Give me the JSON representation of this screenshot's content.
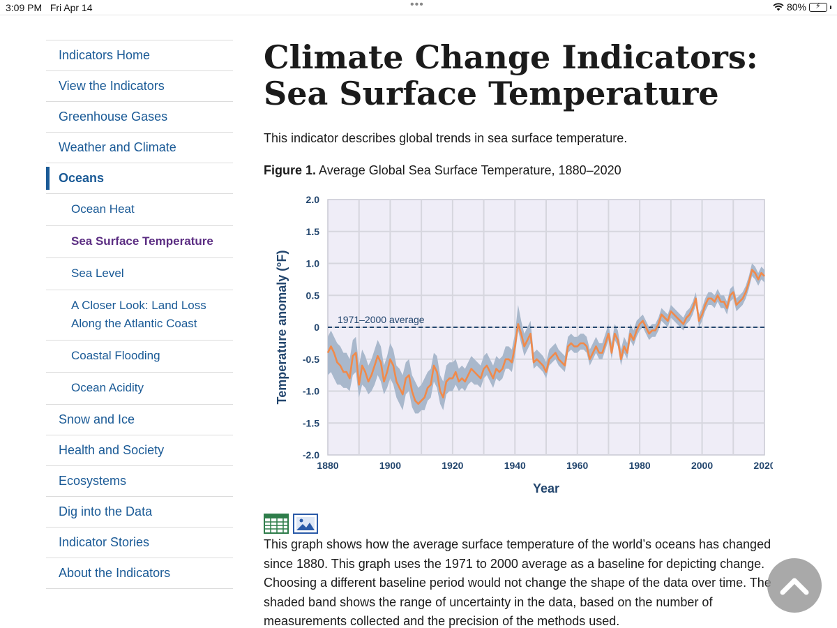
{
  "status": {
    "time": "3:09 PM",
    "date": "Fri Apr 14",
    "battery": "80%",
    "battery_level": 0.8
  },
  "sidebar": {
    "items": [
      {
        "label": "Indicators Home",
        "sub": false,
        "state": ""
      },
      {
        "label": "View the Indicators",
        "sub": false,
        "state": ""
      },
      {
        "label": "Greenhouse Gases",
        "sub": false,
        "state": ""
      },
      {
        "label": "Weather and Climate",
        "sub": false,
        "state": ""
      },
      {
        "label": "Oceans",
        "sub": false,
        "state": "active"
      },
      {
        "label": "Ocean Heat",
        "sub": true,
        "state": ""
      },
      {
        "label": "Sea Surface Temperature",
        "sub": true,
        "state": "current"
      },
      {
        "label": "Sea Level",
        "sub": true,
        "state": ""
      },
      {
        "label": "A Closer Look: Land Loss Along the Atlantic Coast",
        "sub": true,
        "state": ""
      },
      {
        "label": "Coastal Flooding",
        "sub": true,
        "state": ""
      },
      {
        "label": "Ocean Acidity",
        "sub": true,
        "state": ""
      },
      {
        "label": "Snow and Ice",
        "sub": false,
        "state": ""
      },
      {
        "label": "Health and Society",
        "sub": false,
        "state": ""
      },
      {
        "label": "Ecosystems",
        "sub": false,
        "state": ""
      },
      {
        "label": "Dig into the Data",
        "sub": false,
        "state": ""
      },
      {
        "label": "Indicator Stories",
        "sub": false,
        "state": ""
      },
      {
        "label": "About the Indicators",
        "sub": false,
        "state": ""
      }
    ]
  },
  "main": {
    "title": "Climate Change Indicators: Sea Surface Temperature",
    "intro": "This indicator describes global trends in sea surface temperature.",
    "figure_label": "Figure 1.",
    "figure_caption": " Average Global Sea Surface Temperature, 1880–2020",
    "description": "This graph shows how the average surface temperature of the world’s oceans has changed since 1880. This graph uses the 1971 to 2000 average as a baseline for depicting change. Choosing a different baseline period would not change the shape of the data over time. The shaded band shows the range of uncertainty in the data, based on the number of measurements collected and the precision of the methods used."
  },
  "icons": {
    "table": "table-icon",
    "image": "image-icon",
    "back_to_top": "chevron-up-icon"
  },
  "chart_data": {
    "type": "line",
    "title": "",
    "xlabel": "Year",
    "ylabel": "Temperature anomaly (°F)",
    "xlim": [
      1880,
      2020
    ],
    "ylim": [
      -2.0,
      2.0
    ],
    "x_ticks": [
      1880,
      1900,
      1920,
      1940,
      1960,
      1980,
      2000,
      2020
    ],
    "x_tick_labels": [
      "1880",
      "1900",
      "1920",
      "1940",
      "1960",
      "1980",
      "2000",
      "2020"
    ],
    "y_ticks": [
      2.0,
      1.5,
      1.0,
      0.5,
      0,
      -0.5,
      -1.0,
      -1.5,
      -2.0
    ],
    "y_tick_labels": [
      "2.0",
      "1.5",
      "1.0",
      "0.5",
      "0",
      "-0.5",
      "-1.0",
      "-1.5",
      "-2.0"
    ],
    "grid": true,
    "colors": {
      "line": "#f08a4b",
      "band": "#a9b8cc",
      "plot_bg": "#efedf7",
      "grid": "#d6d6de",
      "baseline": "#23466e",
      "axis_text": "#23466e"
    },
    "reference_line": {
      "y": 0,
      "label": "1971–2000 average"
    },
    "series": [
      {
        "x": [
          1880,
          1881,
          1882,
          1883,
          1884,
          1885,
          1886,
          1887,
          1888,
          1889,
          1890,
          1891,
          1892,
          1893,
          1894,
          1895,
          1896,
          1897,
          1898,
          1899,
          1900,
          1901,
          1902,
          1903,
          1904,
          1905,
          1906,
          1907,
          1908,
          1909,
          1910,
          1911,
          1912,
          1913,
          1914,
          1915,
          1916,
          1917,
          1918,
          1919,
          1920,
          1921,
          1922,
          1923,
          1924,
          1925,
          1926,
          1927,
          1928,
          1929,
          1930,
          1931,
          1932,
          1933,
          1934,
          1935,
          1936,
          1937,
          1938,
          1939,
          1940,
          1941,
          1942,
          1943,
          1944,
          1945,
          1946,
          1947,
          1948,
          1949,
          1950,
          1951,
          1952,
          1953,
          1954,
          1955,
          1956,
          1957,
          1958,
          1959,
          1960,
          1961,
          1962,
          1963,
          1964,
          1965,
          1966,
          1967,
          1968,
          1969,
          1970,
          1971,
          1972,
          1973,
          1974,
          1975,
          1976,
          1977,
          1978,
          1979,
          1980,
          1981,
          1982,
          1983,
          1984,
          1985,
          1986,
          1987,
          1988,
          1989,
          1990,
          1991,
          1992,
          1993,
          1994,
          1995,
          1996,
          1997,
          1998,
          1999,
          2000,
          2001,
          2002,
          2003,
          2004,
          2005,
          2006,
          2007,
          2008,
          2009,
          2010,
          2011,
          2012,
          2013,
          2014,
          2015,
          2016,
          2017,
          2018,
          2019,
          2020
        ],
        "values": [
          -0.4,
          -0.3,
          -0.4,
          -0.55,
          -0.6,
          -0.7,
          -0.7,
          -0.8,
          -0.45,
          -0.4,
          -0.9,
          -0.6,
          -0.7,
          -0.85,
          -0.75,
          -0.6,
          -0.45,
          -0.55,
          -0.85,
          -0.7,
          -0.5,
          -0.6,
          -0.85,
          -0.95,
          -1.05,
          -0.8,
          -0.75,
          -1.0,
          -1.15,
          -1.2,
          -1.15,
          -1.1,
          -0.95,
          -0.9,
          -0.6,
          -0.7,
          -1.0,
          -1.1,
          -0.85,
          -0.8,
          -0.8,
          -0.7,
          -0.85,
          -0.8,
          -0.85,
          -0.75,
          -0.65,
          -0.7,
          -0.75,
          -0.8,
          -0.65,
          -0.6,
          -0.7,
          -0.8,
          -0.65,
          -0.7,
          -0.65,
          -0.5,
          -0.5,
          -0.55,
          -0.3,
          0.05,
          -0.1,
          -0.3,
          -0.2,
          -0.1,
          -0.55,
          -0.5,
          -0.55,
          -0.6,
          -0.7,
          -0.5,
          -0.45,
          -0.4,
          -0.5,
          -0.55,
          -0.6,
          -0.3,
          -0.25,
          -0.3,
          -0.3,
          -0.25,
          -0.25,
          -0.3,
          -0.5,
          -0.4,
          -0.3,
          -0.4,
          -0.4,
          -0.25,
          -0.1,
          -0.4,
          -0.1,
          -0.2,
          -0.5,
          -0.3,
          -0.4,
          -0.1,
          -0.2,
          -0.05,
          0.05,
          0.1,
          0.0,
          -0.1,
          -0.05,
          -0.05,
          0.05,
          0.2,
          0.15,
          0.1,
          0.25,
          0.2,
          0.15,
          0.1,
          0.05,
          0.15,
          0.2,
          0.3,
          0.45,
          0.1,
          0.2,
          0.35,
          0.45,
          0.45,
          0.4,
          0.5,
          0.4,
          0.4,
          0.3,
          0.5,
          0.55,
          0.35,
          0.4,
          0.45,
          0.55,
          0.7,
          0.9,
          0.85,
          0.75,
          0.85,
          0.8
        ],
        "lower": [
          -0.75,
          -0.7,
          -0.8,
          -0.9,
          -0.9,
          -0.95,
          -0.95,
          -1.0,
          -0.75,
          -0.7,
          -1.1,
          -0.9,
          -0.95,
          -1.05,
          -1.0,
          -0.9,
          -0.75,
          -0.85,
          -1.05,
          -0.95,
          -0.8,
          -0.9,
          -1.1,
          -1.2,
          -1.3,
          -1.05,
          -1.0,
          -1.25,
          -1.35,
          -1.35,
          -1.3,
          -1.3,
          -1.15,
          -1.1,
          -0.85,
          -0.95,
          -1.2,
          -1.3,
          -1.05,
          -1.0,
          -1.0,
          -0.9,
          -1.0,
          -0.95,
          -1.0,
          -0.9,
          -0.85,
          -0.9,
          -0.9,
          -0.95,
          -0.8,
          -0.75,
          -0.85,
          -0.95,
          -0.8,
          -0.85,
          -0.8,
          -0.65,
          -0.65,
          -0.7,
          -0.45,
          -0.05,
          -0.25,
          -0.45,
          -0.35,
          -0.25,
          -0.65,
          -0.6,
          -0.65,
          -0.7,
          -0.8,
          -0.6,
          -0.55,
          -0.5,
          -0.6,
          -0.65,
          -0.7,
          -0.4,
          -0.35,
          -0.4,
          -0.4,
          -0.35,
          -0.35,
          -0.4,
          -0.6,
          -0.5,
          -0.4,
          -0.5,
          -0.5,
          -0.35,
          -0.2,
          -0.5,
          -0.2,
          -0.3,
          -0.6,
          -0.4,
          -0.5,
          -0.2,
          -0.3,
          -0.15,
          -0.05,
          0.0,
          -0.1,
          -0.2,
          -0.15,
          -0.15,
          -0.05,
          0.1,
          0.05,
          0.0,
          0.15,
          0.1,
          0.05,
          0.0,
          -0.05,
          0.05,
          0.1,
          0.2,
          0.35,
          0.0,
          0.1,
          0.25,
          0.35,
          0.35,
          0.3,
          0.4,
          0.3,
          0.3,
          0.2,
          0.4,
          0.45,
          0.25,
          0.3,
          0.35,
          0.45,
          0.6,
          0.8,
          0.75,
          0.65,
          0.75,
          0.7
        ],
        "upper": [
          -0.15,
          -0.05,
          -0.15,
          -0.25,
          -0.3,
          -0.4,
          -0.4,
          -0.5,
          -0.2,
          -0.15,
          -0.6,
          -0.35,
          -0.45,
          -0.6,
          -0.5,
          -0.35,
          -0.2,
          -0.3,
          -0.6,
          -0.45,
          -0.25,
          -0.35,
          -0.6,
          -0.65,
          -0.75,
          -0.55,
          -0.5,
          -0.75,
          -0.85,
          -0.95,
          -0.9,
          -0.8,
          -0.7,
          -0.65,
          -0.4,
          -0.45,
          -0.75,
          -0.85,
          -0.6,
          -0.55,
          -0.55,
          -0.5,
          -0.65,
          -0.6,
          -0.65,
          -0.55,
          -0.45,
          -0.5,
          -0.55,
          -0.6,
          -0.45,
          -0.4,
          -0.5,
          -0.6,
          -0.45,
          -0.5,
          -0.45,
          -0.3,
          -0.3,
          -0.35,
          -0.1,
          0.35,
          0.1,
          -0.1,
          0.0,
          0.1,
          -0.4,
          -0.35,
          -0.4,
          -0.45,
          -0.55,
          -0.35,
          -0.3,
          -0.25,
          -0.35,
          -0.4,
          -0.45,
          -0.15,
          -0.1,
          -0.15,
          -0.15,
          -0.1,
          -0.1,
          -0.15,
          -0.35,
          -0.25,
          -0.15,
          -0.25,
          -0.25,
          -0.1,
          0.05,
          -0.25,
          0.05,
          -0.05,
          -0.35,
          -0.15,
          -0.25,
          0.05,
          -0.05,
          0.1,
          0.15,
          0.2,
          0.1,
          0.0,
          0.05,
          0.05,
          0.15,
          0.3,
          0.25,
          0.2,
          0.35,
          0.3,
          0.25,
          0.2,
          0.15,
          0.25,
          0.3,
          0.4,
          0.55,
          0.2,
          0.3,
          0.45,
          0.55,
          0.55,
          0.5,
          0.6,
          0.5,
          0.5,
          0.4,
          0.6,
          0.65,
          0.45,
          0.5,
          0.55,
          0.65,
          0.8,
          1.0,
          0.95,
          0.85,
          0.95,
          0.9
        ]
      }
    ]
  }
}
